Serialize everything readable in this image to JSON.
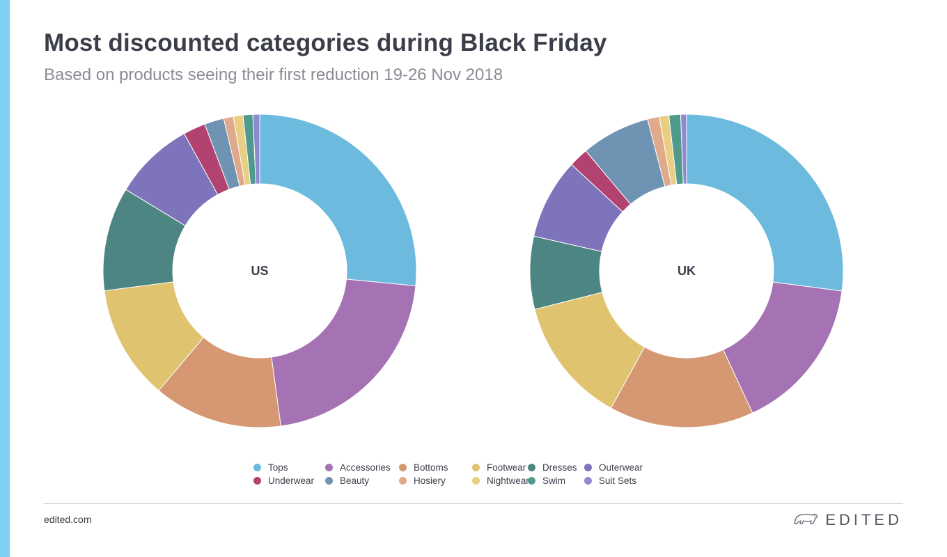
{
  "header": {
    "title": "Most discounted categories during Black Friday",
    "subtitle": "Based on products seeing their first reduction 19-26 Nov 2018"
  },
  "chart_data": [
    {
      "type": "pie",
      "center_label": "US",
      "categories": [
        "Tops",
        "Accessories",
        "Bottoms",
        "Footwear",
        "Dresses",
        "Outerwear",
        "Underwear",
        "Beauty",
        "Hosiery",
        "Nightwear",
        "Swim",
        "Suit Sets"
      ],
      "values": [
        26.5,
        21.3,
        13.3,
        11.8,
        10.7,
        8.3,
        2.3,
        2.0,
        1.0,
        1.0,
        1.0,
        0.7
      ],
      "colors": [
        "#6cbbdf",
        "#a573b4",
        "#d59873",
        "#e0c36f",
        "#4d8582",
        "#7e74bb",
        "#b2426f",
        "#6f94b3",
        "#e0a98a",
        "#e8cf84",
        "#4f9a8c",
        "#8e8ad0"
      ]
    },
    {
      "type": "pie",
      "center_label": "UK",
      "categories": [
        "Tops",
        "Accessories",
        "Bottoms",
        "Footwear",
        "Dresses",
        "Outerwear",
        "Underwear",
        "Beauty",
        "Hosiery",
        "Nightwear",
        "Swim",
        "Suit Sets"
      ],
      "values": [
        27.0,
        16.0,
        14.9,
        13.0,
        7.5,
        8.3,
        2.0,
        7.1,
        1.2,
        1.0,
        1.2,
        0.6
      ],
      "colors": [
        "#6cbbdf",
        "#a573b4",
        "#d59873",
        "#e0c36f",
        "#4d8582",
        "#7e74bb",
        "#b2426f",
        "#6f94b3",
        "#e0a98a",
        "#e8cf84",
        "#4f9a8c",
        "#8e8ad0"
      ]
    }
  ],
  "legend": {
    "placement": "bottom-center",
    "items": [
      {
        "label": "Tops",
        "color": "#6cbbdf"
      },
      {
        "label": "Accessories",
        "color": "#a573b4"
      },
      {
        "label": "Bottoms",
        "color": "#d59873"
      },
      {
        "label": "Footwear",
        "color": "#e0c36f"
      },
      {
        "label": "Dresses",
        "color": "#4d8582"
      },
      {
        "label": "Outerwear",
        "color": "#7e74bb"
      },
      {
        "label": "Underwear",
        "color": "#b2426f"
      },
      {
        "label": "Beauty",
        "color": "#6f94b3"
      },
      {
        "label": "Hosiery",
        "color": "#e0a98a"
      },
      {
        "label": "Nightwear",
        "color": "#e8cf84"
      },
      {
        "label": "Swim",
        "color": "#4f9a8c"
      },
      {
        "label": "Suit Sets",
        "color": "#8e8ad0"
      }
    ]
  },
  "footer": {
    "url": "edited.com",
    "brand": "EDITED",
    "brand_icon": "polar-bear-logo-icon",
    "accent_color": "#7fd0f0"
  }
}
